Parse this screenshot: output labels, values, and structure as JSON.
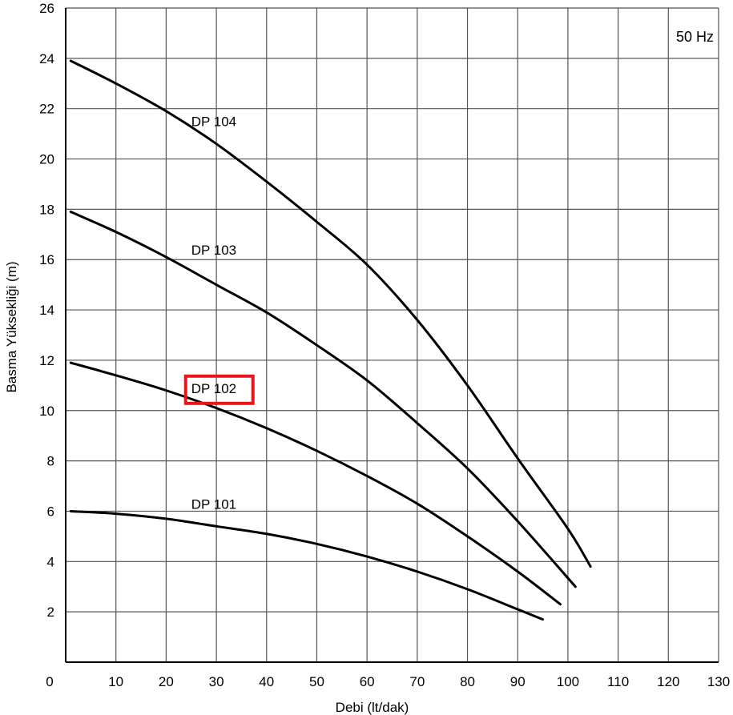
{
  "chart_data": {
    "type": "line",
    "xlabel": "Debi (lt/dak)",
    "ylabel": "Basma Yüksekliği (m)",
    "annotation": "50 Hz",
    "xlim": [
      0,
      130
    ],
    "ylim": [
      0,
      26
    ],
    "xticks": [
      0,
      10,
      20,
      30,
      40,
      50,
      60,
      70,
      80,
      90,
      100,
      110,
      120,
      130
    ],
    "yticks": [
      2,
      4,
      6,
      8,
      10,
      12,
      14,
      16,
      18,
      20,
      22,
      24,
      26
    ],
    "grid": true,
    "highlight_color": "#e8141e",
    "highlighted_series": "DP 102",
    "series": [
      {
        "name": "DP 104",
        "label_at": [
          25,
          21.3
        ],
        "x": [
          1,
          10,
          20,
          30,
          40,
          50,
          60,
          70,
          80,
          90,
          100,
          104.5
        ],
        "y": [
          23.9,
          23.0,
          21.9,
          20.6,
          19.1,
          17.5,
          15.8,
          13.6,
          11.0,
          8.1,
          5.3,
          3.8
        ]
      },
      {
        "name": "DP 103",
        "label_at": [
          25,
          16.2
        ],
        "x": [
          1,
          10,
          20,
          30,
          40,
          50,
          60,
          70,
          80,
          90,
          101.5
        ],
        "y": [
          17.9,
          17.1,
          16.1,
          15.0,
          13.9,
          12.6,
          11.2,
          9.5,
          7.7,
          5.6,
          3.0
        ]
      },
      {
        "name": "DP 102",
        "label_at": [
          25,
          10.7
        ],
        "x": [
          1,
          10,
          20,
          30,
          40,
          50,
          60,
          70,
          80,
          90,
          98.5
        ],
        "y": [
          11.9,
          11.4,
          10.8,
          10.1,
          9.3,
          8.4,
          7.4,
          6.3,
          5.0,
          3.6,
          2.3
        ]
      },
      {
        "name": "DP 101",
        "label_at": [
          25,
          6.1
        ],
        "x": [
          1,
          10,
          20,
          30,
          40,
          50,
          60,
          70,
          80,
          90,
          95
        ],
        "y": [
          6.0,
          5.9,
          5.7,
          5.4,
          5.1,
          4.7,
          4.2,
          3.6,
          2.9,
          2.1,
          1.7
        ]
      }
    ]
  }
}
